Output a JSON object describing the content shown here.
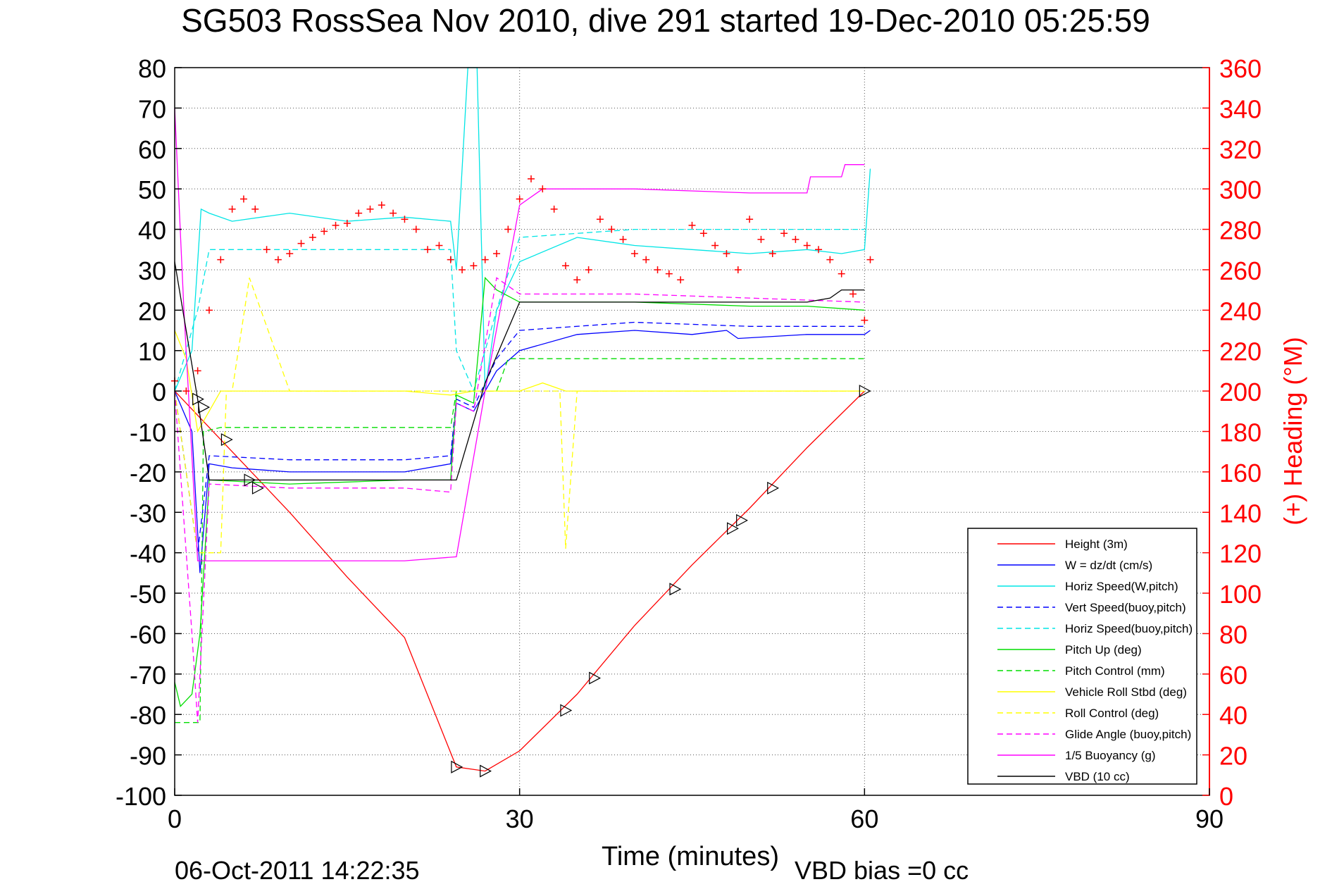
{
  "chart_data": {
    "type": "line",
    "title": "SG503 RossSea Nov 2010, dive 291 started 19-Dec-2010 05:25:59",
    "xlabel": "Time (minutes)",
    "ylabel": "",
    "ylabel_right": "(+) Heading (°M)",
    "footer_left": "06-Oct-2011 14:22:35",
    "footer_right": "VBD bias =0 cc",
    "xlim": [
      0,
      90
    ],
    "ylim": [
      -100,
      80
    ],
    "ylim_right": [
      0,
      360
    ],
    "x_ticks": [
      "0",
      "30",
      "60",
      "90"
    ],
    "y_ticks": [
      "80",
      "70",
      "60",
      "50",
      "40",
      "30",
      "20",
      "10",
      "0",
      "-10",
      "-20",
      "-30",
      "-40",
      "-50",
      "-60",
      "-70",
      "-80",
      "-90",
      "-100"
    ],
    "y_ticks_right": [
      "360",
      "340",
      "320",
      "300",
      "280",
      "260",
      "240",
      "220",
      "200",
      "180",
      "160",
      "140",
      "120",
      "100",
      "80",
      "60",
      "40",
      "20",
      "0"
    ],
    "grid": true,
    "legend_position": "bottom-right",
    "series": [
      {
        "name": "Height (3m)",
        "color": "#ff0000",
        "style": "solid",
        "x": [
          0,
          5,
          10,
          15,
          20,
          24.5,
          27,
          30,
          35,
          40,
          45,
          50,
          55,
          60
        ],
        "y": [
          0,
          -15,
          -30,
          -46,
          -61,
          -93,
          -94,
          -89,
          -75,
          -58,
          -43,
          -29,
          -14,
          0
        ]
      },
      {
        "name": "W = dz/dt (cm/s)",
        "color": "#0000ff",
        "style": "solid",
        "x": [
          0,
          1.5,
          2.2,
          3,
          5,
          10,
          15,
          20,
          24,
          24.5,
          26,
          28,
          30,
          35,
          40,
          45,
          48,
          49,
          55,
          60,
          60.5
        ],
        "y": [
          0,
          -10,
          -45,
          -18,
          -19,
          -20,
          -20,
          -20,
          -18,
          -3,
          -5,
          5,
          10,
          14,
          15,
          14,
          15,
          13,
          14,
          14,
          15
        ]
      },
      {
        "name": "Horiz Speed(W,pitch)",
        "color": "#00e5e5",
        "style": "solid",
        "x": [
          0,
          1.5,
          2.3,
          3,
          5,
          10,
          15,
          20,
          24,
          24.5,
          25.5,
          26.3,
          27,
          28,
          30,
          35,
          40,
          45,
          50,
          55,
          58,
          60,
          60.5
        ],
        "y": [
          0,
          10,
          45,
          44,
          42,
          44,
          42,
          43,
          42,
          30,
          80,
          80,
          0,
          20,
          32,
          38,
          36,
          35,
          34,
          35,
          34,
          35,
          55
        ]
      },
      {
        "name": "Vert Speed(buoy,pitch)",
        "color": "#0000ff",
        "style": "dashed",
        "x": [
          0,
          2,
          3,
          10,
          20,
          24,
          24.5,
          26,
          28,
          30,
          40,
          50,
          60
        ],
        "y": [
          0,
          -40,
          -16,
          -17,
          -17,
          -16,
          -2,
          -4,
          8,
          15,
          17,
          16,
          16
        ]
      },
      {
        "name": "Horiz Speed(buoy,pitch)",
        "color": "#00e5e5",
        "style": "dashed",
        "x": [
          0,
          2,
          3,
          10,
          20,
          24,
          24.5,
          26,
          28,
          30,
          40,
          50,
          60
        ],
        "y": [
          0,
          20,
          35,
          35,
          35,
          35,
          10,
          0,
          20,
          38,
          40,
          40,
          40
        ]
      },
      {
        "name": "Pitch Up (deg)",
        "color": "#00dd00",
        "style": "solid",
        "x": [
          0,
          0.5,
          1.5,
          2.2,
          3,
          10,
          20,
          24,
          24.5,
          26,
          27,
          28,
          30,
          40,
          50,
          55,
          60
        ],
        "y": [
          -72,
          -78,
          -75,
          -60,
          -22,
          -23,
          -22,
          -22,
          -1,
          -3,
          28,
          25,
          22,
          22,
          21,
          21,
          20
        ]
      },
      {
        "name": "Pitch Control (mm)",
        "color": "#00dd00",
        "style": "dashed",
        "x": [
          0,
          2.2,
          2.5,
          4,
          10,
          20,
          24,
          24.5,
          26,
          28,
          29,
          30,
          40,
          50,
          60
        ],
        "y": [
          -82,
          -82,
          -10,
          -9,
          -9,
          -9,
          -9,
          0,
          0,
          0,
          8,
          8,
          8,
          8,
          8
        ]
      },
      {
        "name": "Vehicle Roll Stbd (deg)",
        "color": "#ffff00",
        "style": "solid",
        "x": [
          0,
          1,
          2,
          4,
          10,
          20,
          24,
          26,
          30,
          32,
          34,
          40,
          45,
          50,
          55,
          60
        ],
        "y": [
          15,
          8,
          -10,
          0,
          0,
          0,
          -1,
          0,
          0,
          2,
          0,
          0,
          0,
          0,
          0,
          0
        ]
      },
      {
        "name": "Roll Control (deg)",
        "color": "#ffff00",
        "style": "dashed",
        "x": [
          0,
          2,
          3,
          4,
          4.5,
          5,
          6.5,
          10,
          20,
          24,
          30,
          33.5,
          34,
          35,
          40,
          50,
          60
        ],
        "y": [
          0,
          -40,
          -40,
          -40,
          0,
          0,
          28,
          0,
          0,
          0,
          0,
          0,
          -39,
          0,
          0,
          0,
          0
        ]
      },
      {
        "name": "Glide Angle (buoy,pitch)",
        "color": "#ff00ff",
        "style": "dashed",
        "x": [
          0,
          1.5,
          2,
          3,
          10,
          20,
          24,
          24.5,
          26,
          28,
          30,
          40,
          50,
          60
        ],
        "y": [
          0,
          -60,
          -82,
          -23,
          -24,
          -24,
          -25,
          -3,
          -5,
          28,
          24,
          24,
          23,
          22
        ]
      },
      {
        "name": "1/5 Buoyancy (g)",
        "color": "#ff00ff",
        "style": "solid",
        "x": [
          0,
          0.8,
          2,
          10,
          20,
          24.5,
          27,
          30,
          32,
          40,
          50,
          55,
          55.3,
          58,
          58.3,
          60
        ],
        "y": [
          70,
          20,
          -42,
          -42,
          -42,
          -41,
          0,
          46,
          50,
          50,
          49,
          49,
          53,
          53,
          56,
          56
        ]
      },
      {
        "name": "VBD (10 cc)",
        "color": "#000000",
        "style": "solid",
        "x": [
          0,
          2,
          3,
          10,
          20,
          24.5,
          27,
          30,
          40,
          50,
          55,
          57,
          58,
          60
        ],
        "y": [
          32,
          -2,
          -22,
          -22,
          -22,
          -22,
          2,
          22,
          22,
          22,
          22,
          23,
          25,
          25
        ]
      },
      {
        "name": "Heading",
        "color": "#ff0000",
        "style": "plus",
        "axis": "right",
        "x": [
          0,
          1,
          2,
          3,
          4,
          5,
          6,
          7,
          8,
          9,
          10,
          11,
          12,
          13,
          14,
          15,
          16,
          17,
          18,
          19,
          20,
          21,
          22,
          23,
          24,
          25,
          26,
          27,
          28,
          29,
          30,
          31,
          32,
          33,
          34,
          35,
          36,
          37,
          38,
          39,
          40,
          41,
          42,
          43,
          44,
          45,
          46,
          47,
          48,
          49,
          50,
          51,
          52,
          53,
          54,
          55,
          56,
          57,
          58,
          59,
          60,
          60.5
        ],
        "y": [
          205,
          200,
          210,
          240,
          265,
          290,
          295,
          290,
          270,
          265,
          268,
          273,
          276,
          279,
          282,
          283,
          288,
          290,
          292,
          288,
          285,
          280,
          270,
          272,
          265,
          260,
          262,
          265,
          268,
          280,
          295,
          305,
          300,
          290,
          262,
          255,
          260,
          285,
          280,
          275,
          268,
          265,
          260,
          258,
          255,
          282,
          278,
          272,
          268,
          260,
          285,
          275,
          268,
          278,
          275,
          272,
          270,
          265,
          258,
          248,
          235,
          265
        ]
      }
    ],
    "markers": [
      {
        "x": 2,
        "y": -2
      },
      {
        "x": 2.5,
        "y": -4
      },
      {
        "x": 4.5,
        "y": -12
      },
      {
        "x": 6.5,
        "y": -22
      },
      {
        "x": 7.2,
        "y": -24
      },
      {
        "x": 24.5,
        "y": -93
      },
      {
        "x": 27,
        "y": -94
      },
      {
        "x": 34,
        "y": -79
      },
      {
        "x": 36.5,
        "y": -71
      },
      {
        "x": 43.5,
        "y": -49
      },
      {
        "x": 48.5,
        "y": -34
      },
      {
        "x": 49.3,
        "y": -32
      },
      {
        "x": 52,
        "y": -24
      },
      {
        "x": 60,
        "y": 0
      }
    ]
  }
}
